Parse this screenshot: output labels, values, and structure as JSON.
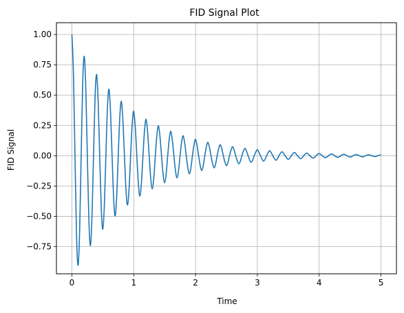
{
  "chart_data": {
    "type": "line",
    "title": "FID Signal Plot",
    "xlabel": "Time",
    "ylabel": "FID Signal",
    "xlim": [
      -0.25,
      5.25
    ],
    "ylim": [
      -0.974,
      1.097
    ],
    "xticks": [
      0,
      1,
      2,
      3,
      4,
      5
    ],
    "xtick_labels": [
      "0",
      "1",
      "2",
      "3",
      "4",
      "5"
    ],
    "yticks": [
      -0.75,
      -0.5,
      -0.25,
      0.0,
      0.25,
      0.5,
      0.75,
      1.0
    ],
    "ytick_labels": [
      "−0.75",
      "−0.50",
      "−0.25",
      "0.00",
      "0.25",
      "0.50",
      "0.75",
      "1.00"
    ],
    "grid": true,
    "line_color": "#1f77b4",
    "series": [
      {
        "x": [
          0.0,
          0.025,
          0.05,
          0.075,
          0.1,
          0.125,
          0.15,
          0.175,
          0.2,
          0.225,
          0.25,
          0.275,
          0.3,
          0.325,
          0.35,
          0.375,
          0.4,
          0.425,
          0.45,
          0.475,
          0.5,
          0.525,
          0.55,
          0.575,
          0.6,
          0.625,
          0.65,
          0.675,
          0.7,
          0.725,
          0.75,
          0.775,
          0.8,
          0.825,
          0.85,
          0.875,
          0.9,
          0.925,
          0.95,
          0.975,
          1.0,
          1.025,
          1.05,
          1.075,
          1.1,
          1.125,
          1.15,
          1.175,
          1.2,
          1.225,
          1.25,
          1.275,
          1.3,
          1.325,
          1.35,
          1.375,
          1.4,
          1.425,
          1.45,
          1.475,
          1.5,
          1.525,
          1.55,
          1.575,
          1.6,
          1.625,
          1.65,
          1.675,
          1.7,
          1.725,
          1.75,
          1.775,
          1.8,
          1.825,
          1.85,
          1.875,
          1.9,
          1.925,
          1.95,
          1.975,
          2.0,
          2.025,
          2.05,
          2.075,
          2.1,
          2.125,
          2.15,
          2.175,
          2.2,
          2.225,
          2.25,
          2.275,
          2.3,
          2.325,
          2.35,
          2.375,
          2.4,
          2.425,
          2.45,
          2.475,
          2.5,
          2.525,
          2.55,
          2.575,
          2.6,
          2.625,
          2.65,
          2.675,
          2.7,
          2.725,
          2.75,
          2.775,
          2.8,
          2.825,
          2.85,
          2.875,
          2.9,
          2.925,
          2.95,
          2.975,
          3.0,
          3.025,
          3.05,
          3.075,
          3.1,
          3.125,
          3.15,
          3.175,
          3.2,
          3.225,
          3.25,
          3.275,
          3.3,
          3.325,
          3.35,
          3.375,
          3.4,
          3.425,
          3.45,
          3.475,
          3.5,
          3.525,
          3.55,
          3.575,
          3.6,
          3.625,
          3.65,
          3.675,
          3.7,
          3.725,
          3.75,
          3.775,
          3.8,
          3.825,
          3.85,
          3.875,
          3.9,
          3.925,
          3.95,
          3.975,
          4.0,
          4.025,
          4.05,
          4.075,
          4.1,
          4.125,
          4.15,
          4.175,
          4.2,
          4.225,
          4.25,
          4.275,
          4.3,
          4.325,
          4.35,
          4.375,
          4.4,
          4.425,
          4.45,
          4.475,
          4.5,
          4.525,
          4.55,
          4.575,
          4.6,
          4.625,
          4.65,
          4.675,
          4.7,
          4.725,
          4.75,
          4.775,
          4.8,
          4.825,
          4.85,
          4.875,
          4.9,
          4.925,
          4.95,
          4.975,
          5.0
        ],
        "y": [
          1.0,
          0.683,
          -0.0,
          -0.657,
          -0.905,
          -0.627,
          0.0,
          0.603,
          0.819,
          0.553,
          -0.0,
          -0.531,
          -0.741,
          -0.508,
          0.0,
          0.487,
          0.67,
          0.448,
          -0.0,
          -0.429,
          -0.607,
          -0.411,
          0.0,
          0.394,
          0.549,
          0.363,
          -0.0,
          -0.347,
          -0.497,
          -0.333,
          0.0,
          0.319,
          0.449,
          0.294,
          -0.0,
          -0.281,
          -0.407,
          -0.273,
          0.0,
          0.258,
          0.368,
          0.238,
          -0.0,
          -0.227,
          -0.333,
          -0.223,
          0.0,
          0.209,
          0.301,
          0.193,
          -0.0,
          -0.184,
          -0.273,
          -0.183,
          0.0,
          0.169,
          0.247,
          0.156,
          -0.0,
          -0.149,
          -0.223,
          -0.15,
          0.0,
          0.137,
          0.202,
          0.127,
          -0.0,
          -0.121,
          -0.183,
          -0.122,
          0.0,
          0.111,
          0.165,
          0.103,
          -0.0,
          -0.098,
          -0.15,
          -0.1,
          0.0,
          0.09,
          0.135,
          0.083,
          -0.0,
          -0.079,
          -0.122,
          -0.082,
          0.0,
          0.073,
          0.111,
          0.068,
          -0.0,
          -0.064,
          -0.1,
          -0.067,
          0.0,
          0.059,
          0.091,
          0.055,
          -0.0,
          -0.052,
          -0.082,
          -0.055,
          0.0,
          0.048,
          0.074,
          0.044,
          -0.0,
          -0.042,
          -0.067,
          -0.045,
          0.0,
          0.039,
          0.061,
          0.036,
          -0.0,
          -0.034,
          -0.055,
          -0.037,
          0.0,
          0.031,
          0.05,
          0.029,
          -0.0,
          -0.028,
          -0.045,
          -0.03,
          0.0,
          0.026,
          0.041,
          0.024,
          -0.0,
          -0.023,
          -0.037,
          -0.025,
          0.0,
          0.021,
          0.033,
          0.019,
          -0.0,
          -0.018,
          -0.03,
          -0.02,
          0.0,
          0.017,
          0.027,
          0.016,
          -0.0,
          -0.015,
          -0.025,
          -0.017,
          0.0,
          0.014,
          0.022,
          0.013,
          -0.0,
          -0.012,
          -0.02,
          -0.014,
          0.0,
          0.011,
          0.018,
          0.011,
          -0.0,
          -0.01,
          -0.017,
          -0.011,
          0.0,
          0.009,
          0.015,
          0.009,
          -0.0,
          -0.008,
          -0.014,
          -0.009,
          0.0,
          0.007,
          0.012,
          0.007,
          -0.0,
          -0.007,
          -0.011,
          -0.007,
          0.0,
          0.006,
          0.01,
          0.006,
          -0.0,
          -0.005,
          -0.009,
          -0.006,
          0.0,
          0.005,
          0.008,
          0.005,
          -0.0,
          -0.004,
          -0.007,
          -0.005,
          0.0,
          0.004,
          0.007
        ]
      }
    ]
  }
}
